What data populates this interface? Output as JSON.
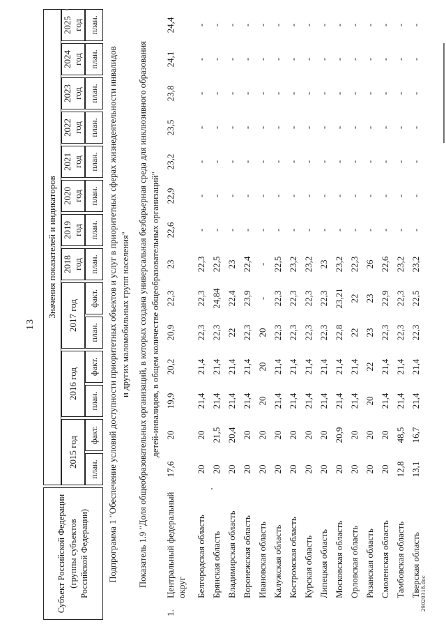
{
  "page": {
    "number": "13",
    "footer_doc": "29020318.doc"
  },
  "table": {
    "subject_header": "Субъект Российской Федерации\n(группы субъектов\nРоссийской Федерации)",
    "values_header": "Значения показателей и индикаторов",
    "year_groups": [
      {
        "label": "2015 год",
        "sub": [
          "план.",
          "факт."
        ]
      },
      {
        "label": "2016 год",
        "sub": [
          "план.",
          "факт."
        ]
      },
      {
        "label": "2017 год",
        "sub": [
          "план.",
          "факт."
        ]
      },
      {
        "label": "2018 год",
        "sub": [
          "план."
        ]
      },
      {
        "label": "2019 год",
        "sub": [
          "план."
        ]
      },
      {
        "label": "2020 год",
        "sub": [
          "план."
        ]
      },
      {
        "label": "2021 год",
        "sub": [
          "план."
        ]
      },
      {
        "label": "2022 год",
        "sub": [
          "план."
        ]
      },
      {
        "label": "2023 год",
        "sub": [
          "план."
        ]
      },
      {
        "label": "2024 год",
        "sub": [
          "план."
        ]
      },
      {
        "label": "2025 год",
        "sub": [
          "план."
        ]
      }
    ],
    "subprogram_title": "Подпрограмма 1 \"Обеспечение условий доступности приоритетных объектов и услуг в приоритетных сферах жизнедеятельности инвалидов\nи других маломобильных групп населения\"",
    "indicator_title": "Показатель 1.9 \"Доля общеобразовательных организаций, в которых создана универсальная безбарьерная среда для инклюзивного образования\nдетей-инвалидов, в общем количестве общеобразовательных организаций\"",
    "rows": [
      {
        "num": "1.",
        "name": "Центральный федеральный округ",
        "values": [
          "17,6",
          "20",
          "19,9",
          "20,2",
          "20,9",
          "22,3",
          "23",
          "22,6",
          "22,9",
          "23,2",
          "23,5",
          "23,8",
          "24,1",
          "24,4"
        ]
      },
      {
        "num": "",
        "name": "Белгородская область",
        "values": [
          "20",
          "20",
          "21,4",
          "21,4",
          "22,3",
          "22,3",
          "22,3",
          "-",
          "-",
          "-",
          "-",
          "-",
          "-",
          "-"
        ]
      },
      {
        "num": "",
        "name": "Брянская область",
        "values": [
          "20",
          "21,5",
          "21,4",
          "21,4",
          "22,3",
          "24,84",
          "22,5",
          "-",
          "-",
          "-",
          "-",
          "-",
          "-",
          "-"
        ]
      },
      {
        "num": "",
        "name": "Владимирская область",
        "values": [
          "20",
          "20,4",
          "21,4",
          "21,4",
          "22",
          "22,4",
          "23",
          "-",
          "-",
          "-",
          "-",
          "-",
          "-",
          "-"
        ]
      },
      {
        "num": "",
        "name": "Воронежская область",
        "values": [
          "20",
          "20",
          "21,4",
          "21,4",
          "22,3",
          "23,9",
          "22,4",
          "-",
          "-",
          "-",
          "-",
          "-",
          "-",
          "-"
        ]
      },
      {
        "num": "",
        "name": "Ивановская область",
        "values": [
          "20",
          "20",
          "20",
          "20",
          "20",
          "-",
          "-",
          "-",
          "-",
          "-",
          "-",
          "-",
          "-",
          "-"
        ]
      },
      {
        "num": "",
        "name": "Калужская область",
        "values": [
          "20",
          "20",
          "21,4",
          "21,4",
          "22,3",
          "22,3",
          "22,5",
          "-",
          "-",
          "-",
          "-",
          "-",
          "-",
          "-"
        ]
      },
      {
        "num": "",
        "name": "Костромская область",
        "values": [
          "20",
          "20",
          "21,4",
          "21,4",
          "22,3",
          "22,3",
          "23,2",
          "-",
          "-",
          "-",
          "-",
          "-",
          "-",
          "-"
        ]
      },
      {
        "num": "",
        "name": "Курская область",
        "values": [
          "20",
          "20",
          "21,4",
          "21,4",
          "22,3",
          "22,3",
          "23,2",
          "-",
          "-",
          "-",
          "-",
          "-",
          "-",
          "-"
        ]
      },
      {
        "num": "",
        "name": "Липецкая область",
        "values": [
          "20",
          "20",
          "21,4",
          "21,4",
          "22,3",
          "22,3",
          "23",
          "-",
          "-",
          "-",
          "-",
          "-",
          "-",
          "-"
        ]
      },
      {
        "num": "",
        "name": "Московская область",
        "values": [
          "20",
          "20,9",
          "21,4",
          "21,4",
          "22,8",
          "23,21",
          "23,2",
          "-",
          "-",
          "-",
          "-",
          "-",
          "-",
          "-"
        ]
      },
      {
        "num": "",
        "name": "Орловская область",
        "values": [
          "20",
          "20",
          "21,4",
          "21,4",
          "22",
          "22",
          "22,3",
          "-",
          "-",
          "-",
          "-",
          "-",
          "-",
          "-"
        ]
      },
      {
        "num": "",
        "name": "Рязанская область",
        "values": [
          "20",
          "20",
          "20",
          "22",
          "23",
          "23",
          "26",
          "-",
          "-",
          "-",
          "-",
          "-",
          "-",
          "-"
        ]
      },
      {
        "num": "",
        "name": "Смоленская область",
        "values": [
          "20",
          "20",
          "21,4",
          "21,4",
          "22,3",
          "22,9",
          "22,6",
          "-",
          "-",
          "-",
          "-",
          "-",
          "-",
          "-"
        ]
      },
      {
        "num": "",
        "name": "Тамбовская область",
        "values": [
          "12,8",
          "48,5",
          "21,4",
          "21,4",
          "22,3",
          "22,3",
          "23,2",
          "-",
          "-",
          "-",
          "-",
          "-",
          "-",
          "-"
        ]
      },
      {
        "num": "",
        "name": "Тверская область",
        "values": [
          "13,1",
          "16,7",
          "21,4",
          "21,4",
          "22,3",
          "22,5",
          "23,2",
          "-",
          "-",
          "-",
          "-",
          "-",
          "-",
          "-"
        ]
      }
    ]
  }
}
